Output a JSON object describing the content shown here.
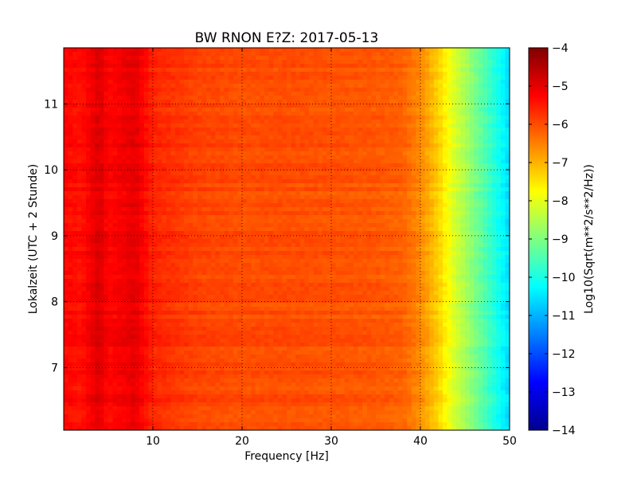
{
  "chart_data": {
    "type": "heatmap",
    "title": "BW RNON E?Z: 2017-05-13",
    "xlabel": "Frequency [Hz]",
    "ylabel": "Lokalzeit (UTC + 2 Stunde)",
    "xlim": [
      0,
      50
    ],
    "ylim": [
      11.85,
      6.05
    ],
    "x_ticks": [
      10,
      20,
      30,
      40,
      50
    ],
    "x_tick_labels": [
      "10",
      "20",
      "30",
      "40",
      "50"
    ],
    "y_ticks": [
      7,
      8,
      9,
      10,
      11
    ],
    "y_tick_labels": [
      "7",
      "8",
      "9",
      "10",
      "11"
    ],
    "grid": true,
    "colormap": "jet",
    "colorbar": {
      "label": "Log10(Sqrt(m**2/s**2/Hz))",
      "vmin": -14,
      "vmax": -4,
      "ticks": [
        -4,
        -5,
        -6,
        -7,
        -8,
        -9,
        -10,
        -11,
        -12,
        -13,
        -14
      ],
      "tick_labels": [
        "−4",
        "−5",
        "−6",
        "−7",
        "−8",
        "−9",
        "−10",
        "−11",
        "−12",
        "−13",
        "−14"
      ]
    },
    "spectral_profile": {
      "frequency": [
        0,
        2,
        4,
        5,
        8,
        10,
        15,
        20,
        25,
        30,
        35,
        38,
        40,
        42,
        44,
        46,
        48,
        50
      ],
      "level": [
        -5.3,
        -5.4,
        -4.9,
        -5.3,
        -5.0,
        -5.6,
        -5.9,
        -6.0,
        -6.0,
        -6.05,
        -6.1,
        -6.2,
        -6.6,
        -7.3,
        -8.2,
        -9.0,
        -9.8,
        -10.6
      ]
    },
    "horizontal_bands": [
      {
        "time": 6.5,
        "delta": 0.55
      },
      {
        "time": 9.6,
        "delta": 0.75
      },
      {
        "time": 10.62,
        "delta": 0.7
      },
      {
        "time": 11.65,
        "delta": 0.45
      },
      {
        "time": 9.3,
        "delta": 0.35
      }
    ]
  }
}
